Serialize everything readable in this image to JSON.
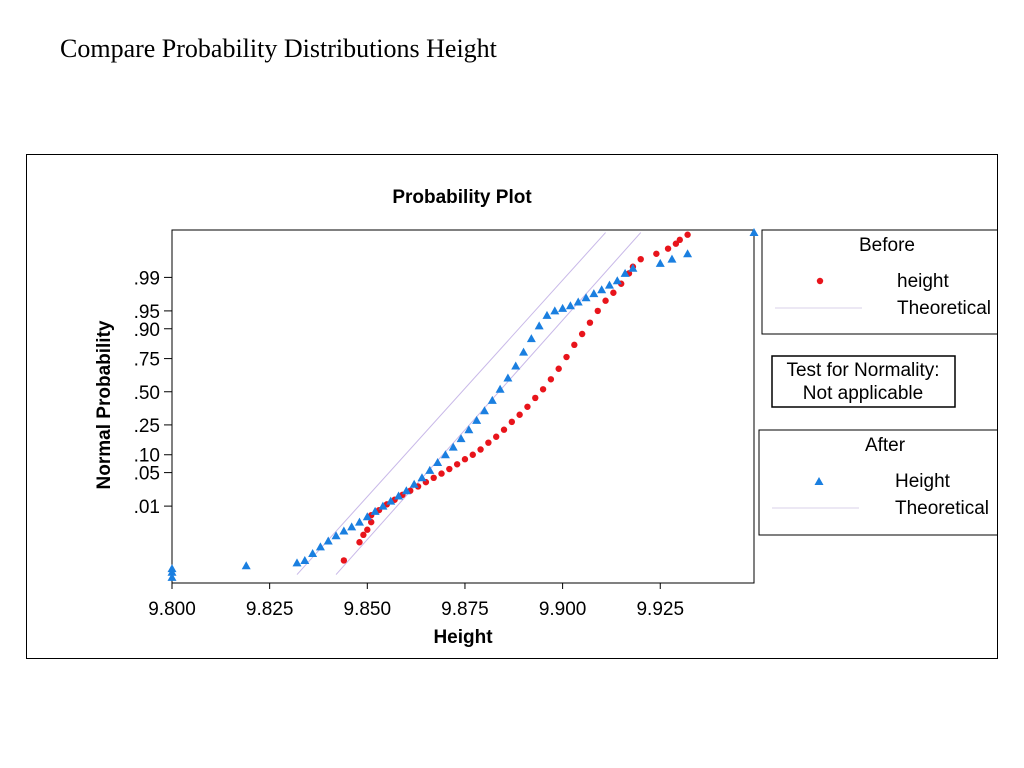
{
  "slide": {
    "title": "Compare Probability Distributions Height"
  },
  "chart_data": {
    "type": "scatter",
    "title": "Probability Plot",
    "xlabel": "Height",
    "ylabel": "Normal Probability",
    "xlim": [
      9.8,
      9.949
    ],
    "x_ticks": [
      "9.800",
      "9.825",
      "9.850",
      "9.875",
      "9.900",
      "9.925"
    ],
    "x_tick_values": [
      9.8,
      9.825,
      9.85,
      9.875,
      9.9,
      9.925
    ],
    "y_scale": "normal-probability",
    "y_ticks": [
      ".01",
      ".05",
      ".10",
      ".25",
      ".50",
      ".75",
      ".90",
      ".95",
      ".99"
    ],
    "y_tick_values": [
      0.01,
      0.05,
      0.1,
      0.25,
      0.5,
      0.75,
      0.9,
      0.95,
      0.99
    ],
    "ylim": [
      5e-05,
      0.9995
    ],
    "grid": false,
    "series": [
      {
        "name": "height",
        "group": "Before",
        "color": "#e8141b",
        "marker": "circle",
        "points": [
          [
            9.844,
            0.0003
          ],
          [
            9.848,
            0.0011
          ],
          [
            9.849,
            0.0018
          ],
          [
            9.85,
            0.0025
          ],
          [
            9.851,
            0.004
          ],
          [
            9.851,
            0.006
          ],
          [
            9.853,
            0.008
          ],
          [
            9.855,
            0.011
          ],
          [
            9.857,
            0.014
          ],
          [
            9.859,
            0.018
          ],
          [
            9.861,
            0.022
          ],
          [
            9.863,
            0.027
          ],
          [
            9.865,
            0.033
          ],
          [
            9.867,
            0.04
          ],
          [
            9.869,
            0.048
          ],
          [
            9.871,
            0.058
          ],
          [
            9.873,
            0.07
          ],
          [
            9.875,
            0.085
          ],
          [
            9.877,
            0.1
          ],
          [
            9.879,
            0.12
          ],
          [
            9.881,
            0.15
          ],
          [
            9.883,
            0.18
          ],
          [
            9.885,
            0.22
          ],
          [
            9.887,
            0.27
          ],
          [
            9.889,
            0.32
          ],
          [
            9.891,
            0.38
          ],
          [
            9.893,
            0.45
          ],
          [
            9.895,
            0.52
          ],
          [
            9.897,
            0.6
          ],
          [
            9.899,
            0.68
          ],
          [
            9.901,
            0.76
          ],
          [
            9.903,
            0.83
          ],
          [
            9.905,
            0.88
          ],
          [
            9.907,
            0.92
          ],
          [
            9.909,
            0.95
          ],
          [
            9.911,
            0.968
          ],
          [
            9.913,
            0.978
          ],
          [
            9.915,
            0.986
          ],
          [
            9.917,
            0.992
          ],
          [
            9.918,
            0.9945
          ],
          [
            9.92,
            0.9965
          ],
          [
            9.924,
            0.9975
          ],
          [
            9.927,
            0.9982
          ],
          [
            9.929,
            0.9987
          ],
          [
            9.93,
            0.999
          ],
          [
            9.932,
            0.9993
          ]
        ]
      },
      {
        "name": "Height",
        "group": "After",
        "color": "#1a7fe0",
        "marker": "triangle",
        "points": [
          [
            9.8,
            8e-05
          ],
          [
            9.8,
            0.00012
          ],
          [
            9.8,
            0.00016
          ],
          [
            9.819,
            0.0002
          ],
          [
            9.832,
            0.00025
          ],
          [
            9.834,
            0.0003
          ],
          [
            9.836,
            0.0005
          ],
          [
            9.838,
            0.0008
          ],
          [
            9.84,
            0.0012
          ],
          [
            9.842,
            0.0017
          ],
          [
            9.844,
            0.0023
          ],
          [
            9.846,
            0.003
          ],
          [
            9.848,
            0.004
          ],
          [
            9.85,
            0.0055
          ],
          [
            9.852,
            0.0075
          ],
          [
            9.854,
            0.01
          ],
          [
            9.856,
            0.013
          ],
          [
            9.858,
            0.017
          ],
          [
            9.86,
            0.022
          ],
          [
            9.862,
            0.03
          ],
          [
            9.864,
            0.04
          ],
          [
            9.866,
            0.055
          ],
          [
            9.868,
            0.075
          ],
          [
            9.87,
            0.1
          ],
          [
            9.872,
            0.13
          ],
          [
            9.874,
            0.17
          ],
          [
            9.876,
            0.22
          ],
          [
            9.878,
            0.28
          ],
          [
            9.88,
            0.35
          ],
          [
            9.882,
            0.43
          ],
          [
            9.884,
            0.52
          ],
          [
            9.886,
            0.61
          ],
          [
            9.888,
            0.7
          ],
          [
            9.89,
            0.79
          ],
          [
            9.892,
            0.86
          ],
          [
            9.894,
            0.91
          ],
          [
            9.896,
            0.94
          ],
          [
            9.898,
            0.95
          ],
          [
            9.9,
            0.955
          ],
          [
            9.902,
            0.96
          ],
          [
            9.904,
            0.966
          ],
          [
            9.906,
            0.972
          ],
          [
            9.908,
            0.977
          ],
          [
            9.91,
            0.981
          ],
          [
            9.912,
            0.985
          ],
          [
            9.914,
            0.988
          ],
          [
            9.916,
            0.992
          ],
          [
            9.918,
            0.994
          ],
          [
            9.925,
            0.9955
          ],
          [
            9.928,
            0.9965
          ],
          [
            9.932,
            0.9975
          ],
          [
            9.949,
            0.9994
          ]
        ]
      }
    ],
    "theoretical_lines": [
      {
        "group": "Before",
        "color": "#c8b8e8",
        "from": [
          9.842,
          0.0001
        ],
        "to": [
          9.92,
          0.9994
        ]
      },
      {
        "group": "After",
        "color": "#c8b8e8",
        "from": [
          9.832,
          0.0001
        ],
        "to": [
          9.911,
          0.9994
        ]
      }
    ],
    "legends": [
      {
        "title": "Before",
        "series_label": "height",
        "line_label": "Theoretical",
        "marker": "circle",
        "color": "#e8141b"
      },
      {
        "title": "After",
        "series_label": "Height",
        "line_label": "Theoretical",
        "marker": "triangle",
        "color": "#1a7fe0"
      }
    ],
    "normality_box": {
      "line1": "Test for Normality:",
      "line2": "Not applicable"
    }
  }
}
